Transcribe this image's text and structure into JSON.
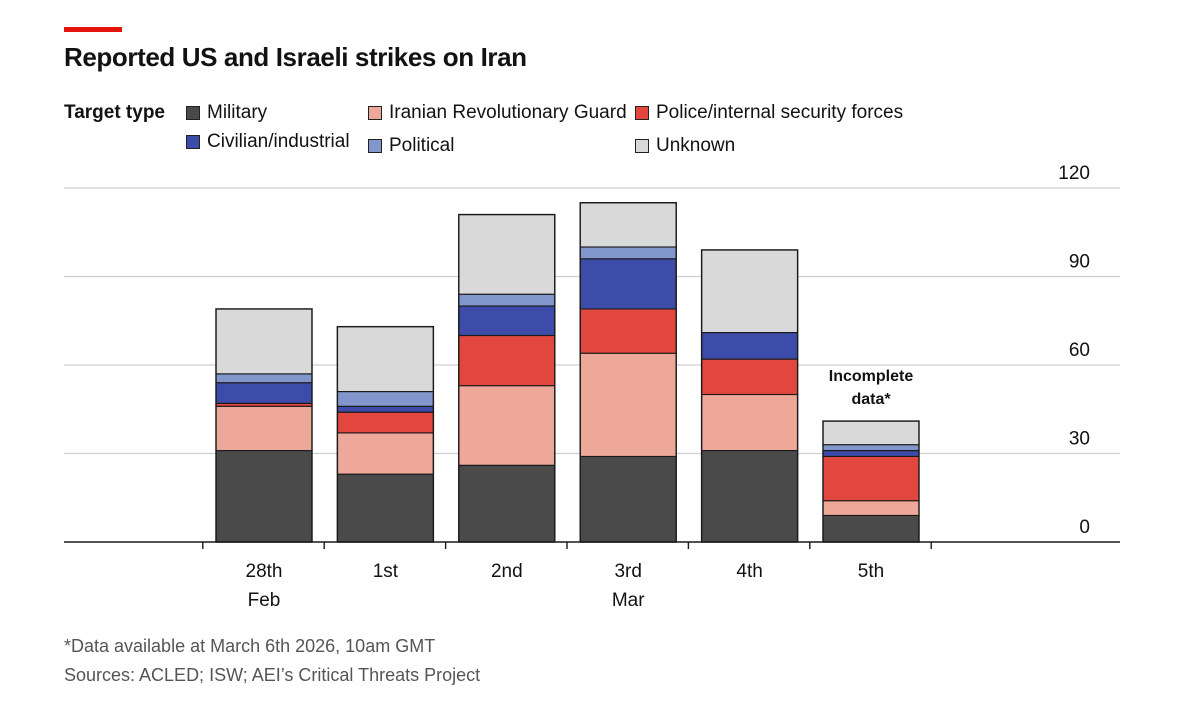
{
  "header": {
    "title": "Reported US and Israeli strikes on Iran",
    "accent_color": "#e3120b"
  },
  "legend": {
    "heading": "Target type",
    "items": [
      {
        "label": "Military",
        "color": "#4a4a4a"
      },
      {
        "label": "Civilian/industrial",
        "color": "#3c4ca8"
      },
      {
        "label": "Iranian Revolutionary Guard",
        "color": "#eda899"
      },
      {
        "label": "Political",
        "color": "#8197cb"
      },
      {
        "label": "Police/internal security forces",
        "color": "#e2473f"
      },
      {
        "label": "Unknown",
        "color": "#d9d9d9"
      }
    ]
  },
  "chart_data": {
    "type": "bar",
    "stacked": true,
    "title": "Reported US and Israeli strikes on Iran",
    "xlabel": "",
    "ylabel": "",
    "ylim": [
      0,
      120
    ],
    "yticks": [
      0,
      30,
      60,
      90,
      120
    ],
    "categories": [
      "28th Feb",
      "1st",
      "2nd",
      "3rd Mar",
      "4th",
      "5th"
    ],
    "category_labels": [
      [
        "28th",
        "Feb"
      ],
      [
        "1st"
      ],
      [
        "2nd"
      ],
      [
        "3rd",
        "Mar"
      ],
      [
        "4th"
      ],
      [
        "5th"
      ]
    ],
    "series": [
      {
        "name": "Military",
        "color": "#4a4a4a",
        "values": [
          31,
          23,
          26,
          29,
          31,
          9
        ]
      },
      {
        "name": "Iranian Revolutionary Guard",
        "color": "#eda899",
        "values": [
          15,
          14,
          27,
          35,
          19,
          5
        ]
      },
      {
        "name": "Police/internal security forces",
        "color": "#e2473f",
        "values": [
          1,
          7,
          17,
          15,
          12,
          15
        ]
      },
      {
        "name": "Civilian/industrial",
        "color": "#3c4ca8",
        "values": [
          7,
          2,
          10,
          17,
          9,
          2
        ]
      },
      {
        "name": "Political",
        "color": "#8197cb",
        "values": [
          3,
          5,
          4,
          4,
          0,
          2
        ]
      },
      {
        "name": "Unknown",
        "color": "#d9d9d9",
        "values": [
          22,
          22,
          27,
          15,
          28,
          8
        ]
      }
    ],
    "annotations": [
      {
        "category": "5th",
        "lines": [
          "Incomplete",
          "data*"
        ]
      }
    ],
    "grid": true
  },
  "footer": {
    "note": "*Data available at March 6th 2026, 10am GMT",
    "sources": "Sources: ACLED; ISW; AEI’s Critical Threats Project"
  }
}
